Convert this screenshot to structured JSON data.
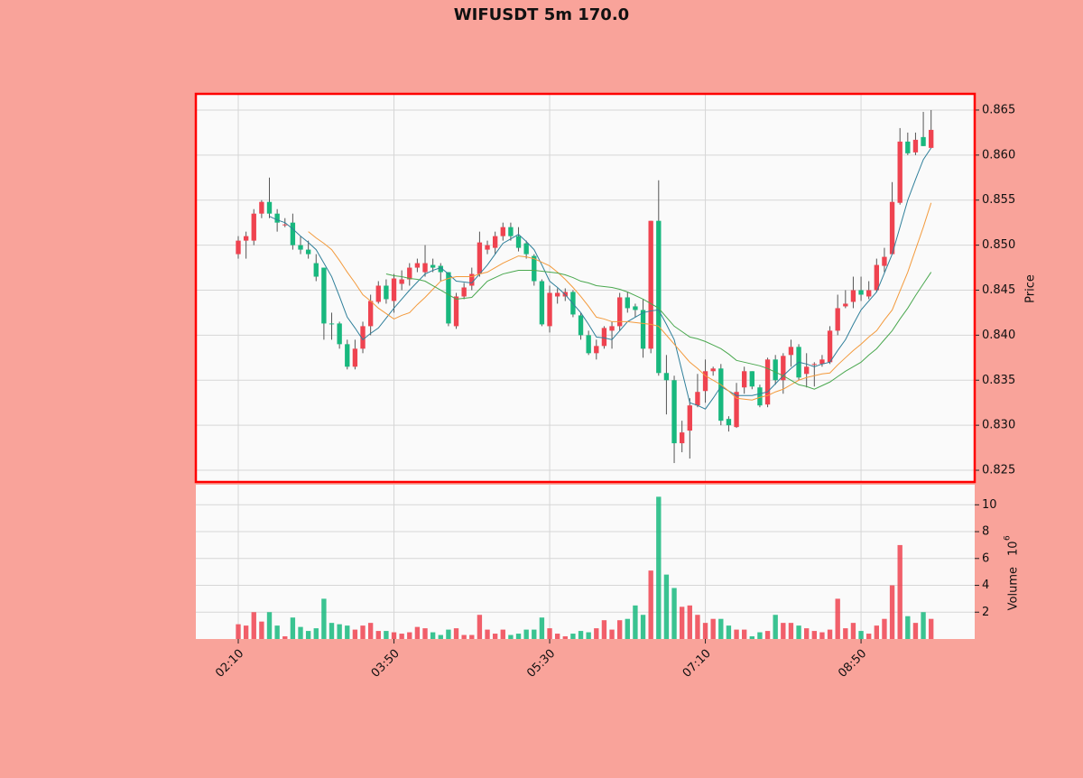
{
  "chart_data": {
    "type": "candlestick",
    "title": "WIFUSDT 5m 170.0",
    "categories": [
      "02:10",
      null,
      null,
      null,
      null,
      null,
      null,
      null,
      null,
      null,
      null,
      null,
      null,
      null,
      null,
      null,
      null,
      null,
      null,
      null,
      "03:50",
      null,
      null,
      null,
      null,
      null,
      null,
      null,
      null,
      null,
      null,
      null,
      null,
      null,
      null,
      null,
      null,
      null,
      null,
      null,
      "05:30",
      null,
      null,
      null,
      null,
      null,
      null,
      null,
      null,
      null,
      null,
      null,
      null,
      null,
      null,
      null,
      null,
      null,
      null,
      null,
      "07:10",
      null,
      null,
      null,
      null,
      null,
      null,
      null,
      null,
      null,
      null,
      null,
      null,
      null,
      null,
      null,
      null,
      null,
      null,
      null,
      "08:50",
      null,
      null,
      null,
      null,
      null,
      null,
      null,
      null,
      null
    ],
    "xlim": [
      -5.45,
      94.6
    ],
    "open": [
      0.849,
      0.8505,
      0.8505,
      0.8535,
      0.8548,
      0.8535,
      0.8523,
      0.8525,
      0.85,
      0.8495,
      0.848,
      0.8475,
      0.8413,
      0.8413,
      0.839,
      0.8365,
      0.8385,
      0.841,
      0.8437,
      0.8455,
      0.8438,
      0.8457,
      0.8462,
      0.8475,
      0.847,
      0.8478,
      0.8477,
      0.847,
      0.841,
      0.8443,
      0.8455,
      0.8468,
      0.8495,
      0.8497,
      0.851,
      0.852,
      0.851,
      0.8502,
      0.8488,
      0.846,
      0.841,
      0.8443,
      0.8443,
      0.8448,
      0.8422,
      0.84,
      0.838,
      0.8388,
      0.8405,
      0.841,
      0.8442,
      0.8432,
      0.8428,
      0.8385,
      0.8527,
      0.8358,
      0.835,
      0.828,
      0.8294,
      0.8322,
      0.8338,
      0.836,
      0.8363,
      0.8307,
      0.8298,
      0.8342,
      0.836,
      0.8342,
      0.8323,
      0.8373,
      0.835,
      0.8378,
      0.8387,
      0.8357,
      0.8367,
      0.8368,
      0.837,
      0.8405,
      0.8432,
      0.8437,
      0.845,
      0.8443,
      0.845,
      0.8477,
      0.849,
      0.8547,
      0.8615,
      0.8603,
      0.862,
      0.8608
    ],
    "high": [
      0.851,
      0.8515,
      0.854,
      0.855,
      0.8575,
      0.854,
      0.853,
      0.8535,
      0.851,
      0.8505,
      0.849,
      0.8475,
      0.8425,
      0.8415,
      0.8395,
      0.8395,
      0.8415,
      0.8445,
      0.846,
      0.8462,
      0.8468,
      0.8472,
      0.848,
      0.8485,
      0.85,
      0.8485,
      0.848,
      0.847,
      0.8447,
      0.8458,
      0.8475,
      0.8515,
      0.8505,
      0.8515,
      0.8525,
      0.8525,
      0.852,
      0.8505,
      0.849,
      0.8462,
      0.8455,
      0.8452,
      0.8452,
      0.845,
      0.8425,
      0.8405,
      0.8395,
      0.841,
      0.8415,
      0.8447,
      0.8448,
      0.8435,
      0.844,
      0.8527,
      0.8572,
      0.8378,
      0.8355,
      0.8305,
      0.833,
      0.8357,
      0.8373,
      0.8365,
      0.8368,
      0.831,
      0.8347,
      0.8365,
      0.836,
      0.8345,
      0.8375,
      0.8378,
      0.838,
      0.8395,
      0.839,
      0.838,
      0.837,
      0.8378,
      0.841,
      0.8445,
      0.845,
      0.8465,
      0.8465,
      0.846,
      0.8485,
      0.8497,
      0.857,
      0.863,
      0.8625,
      0.8625,
      0.8648,
      0.865
    ],
    "low": [
      0.8485,
      0.8485,
      0.85,
      0.853,
      0.853,
      0.8515,
      0.852,
      0.8495,
      0.849,
      0.8485,
      0.846,
      0.8395,
      0.8395,
      0.8385,
      0.8362,
      0.8362,
      0.838,
      0.84,
      0.8435,
      0.8435,
      0.8425,
      0.845,
      0.8455,
      0.847,
      0.8465,
      0.847,
      0.846,
      0.841,
      0.8407,
      0.844,
      0.845,
      0.8465,
      0.849,
      0.849,
      0.8505,
      0.8505,
      0.8493,
      0.8485,
      0.8455,
      0.841,
      0.8403,
      0.8435,
      0.8438,
      0.842,
      0.8395,
      0.8378,
      0.8373,
      0.8385,
      0.8385,
      0.8405,
      0.8425,
      0.842,
      0.8375,
      0.838,
      0.8355,
      0.8312,
      0.8258,
      0.827,
      0.8263,
      0.832,
      0.8325,
      0.8355,
      0.83,
      0.8293,
      0.8297,
      0.8335,
      0.834,
      0.832,
      0.832,
      0.8345,
      0.8335,
      0.8365,
      0.835,
      0.8342,
      0.8343,
      0.8365,
      0.8368,
      0.84,
      0.843,
      0.843,
      0.8438,
      0.844,
      0.8448,
      0.847,
      0.849,
      0.8545,
      0.86,
      0.86,
      0.861,
      0.8608
    ],
    "close": [
      0.8505,
      0.851,
      0.8535,
      0.8548,
      0.8535,
      0.8525,
      0.8523,
      0.85,
      0.8495,
      0.849,
      0.8465,
      0.8413,
      0.8412,
      0.839,
      0.8365,
      0.8385,
      0.841,
      0.8438,
      0.8455,
      0.844,
      0.8463,
      0.8462,
      0.8475,
      0.848,
      0.848,
      0.8475,
      0.847,
      0.8413,
      0.8443,
      0.8453,
      0.8468,
      0.8503,
      0.85,
      0.851,
      0.852,
      0.851,
      0.8497,
      0.849,
      0.846,
      0.8412,
      0.8447,
      0.8447,
      0.8448,
      0.8423,
      0.84,
      0.838,
      0.8388,
      0.8408,
      0.841,
      0.8442,
      0.843,
      0.8428,
      0.8385,
      0.8527,
      0.8358,
      0.835,
      0.828,
      0.8292,
      0.8322,
      0.8337,
      0.836,
      0.8363,
      0.8305,
      0.83,
      0.8337,
      0.836,
      0.8343,
      0.8322,
      0.8373,
      0.835,
      0.8377,
      0.8387,
      0.8353,
      0.8365,
      0.8368,
      0.8373,
      0.8405,
      0.843,
      0.8435,
      0.845,
      0.8445,
      0.845,
      0.8478,
      0.8487,
      0.8548,
      0.8615,
      0.8602,
      0.8617,
      0.861,
      0.8628
    ],
    "up_color": "#ef4350",
    "down_color": "#18b87e",
    "ylabel": "Price",
    "ylim": [
      0.8237,
      0.8668
    ],
    "yticks": [
      {
        "value": 0.825,
        "label": "0.825"
      },
      {
        "value": 0.83,
        "label": "0.830"
      },
      {
        "value": 0.835,
        "label": "0.835"
      },
      {
        "value": 0.84,
        "label": "0.840"
      },
      {
        "value": 0.845,
        "label": "0.845"
      },
      {
        "value": 0.85,
        "label": "0.850"
      },
      {
        "value": 0.855,
        "label": "0.855"
      },
      {
        "value": 0.86,
        "label": "0.860"
      },
      {
        "value": 0.865,
        "label": "0.865"
      }
    ],
    "grid": true,
    "moving_averages": [
      {
        "color": "#2f7f9a",
        "values": [
          null,
          null,
          null,
          null,
          0.8532,
          0.8528,
          0.8525,
          0.8518,
          0.851,
          0.8503,
          0.8495,
          0.848,
          0.8465,
          0.8443,
          0.842,
          0.8408,
          0.8395,
          0.8402,
          0.8408,
          0.8419,
          0.843,
          0.844,
          0.845,
          0.8459,
          0.8468,
          0.8472,
          0.8475,
          0.8468,
          0.846,
          0.8459,
          0.8458,
          0.8468,
          0.8478,
          0.849,
          0.8502,
          0.8507,
          0.8512,
          0.8504,
          0.8495,
          0.8478,
          0.846,
          0.8453,
          0.8445,
          0.8435,
          0.8425,
          0.8412,
          0.8398,
          0.8397,
          0.8395,
          0.8405,
          0.8415,
          0.842,
          0.8425,
          0.8427,
          0.8428,
          0.8412,
          0.8395,
          0.836,
          0.8325,
          0.8322,
          0.8318,
          0.833,
          0.8343,
          0.8338,
          0.8333,
          0.8333,
          0.8333,
          0.8335,
          0.8337,
          0.8346,
          0.8355,
          0.8363,
          0.837,
          0.8368,
          0.8365,
          0.8368,
          0.837,
          0.8383,
          0.8395,
          0.8412,
          0.8428,
          0.8438,
          0.8448,
          0.8469,
          0.849,
          0.852,
          0.855,
          0.8573,
          0.8595,
          0.8608
        ]
      },
      {
        "color": "#f39a3c",
        "values": [
          null,
          null,
          null,
          null,
          null,
          null,
          null,
          null,
          null,
          0.8515,
          0.8508,
          0.8502,
          0.8495,
          0.8483,
          0.847,
          0.8458,
          0.8445,
          0.8438,
          0.843,
          0.8424,
          0.8418,
          0.8422,
          0.8425,
          0.8434,
          0.8442,
          0.8451,
          0.846,
          0.8463,
          0.8465,
          0.8465,
          0.8465,
          0.8468,
          0.847,
          0.8475,
          0.848,
          0.8484,
          0.8488,
          0.8487,
          0.8485,
          0.8481,
          0.8477,
          0.847,
          0.8462,
          0.8453,
          0.8443,
          0.8432,
          0.842,
          0.8418,
          0.8415,
          0.8415,
          0.8415,
          0.8414,
          0.8413,
          0.8412,
          0.841,
          0.84,
          0.839,
          0.838,
          0.837,
          0.8363,
          0.8355,
          0.835,
          0.8345,
          0.8338,
          0.833,
          0.8329,
          0.8328,
          0.8331,
          0.8333,
          0.8337,
          0.834,
          0.8345,
          0.835,
          0.8353,
          0.8355,
          0.8357,
          0.8358,
          0.8367,
          0.8375,
          0.8383,
          0.839,
          0.8398,
          0.8405,
          0.8417,
          0.8428,
          0.8449,
          0.847,
          0.8495,
          0.852,
          0.8547
        ]
      },
      {
        "color": "#4aa84f",
        "values": [
          null,
          null,
          null,
          null,
          null,
          null,
          null,
          null,
          null,
          null,
          null,
          null,
          null,
          null,
          null,
          null,
          null,
          null,
          null,
          0.8468,
          0.8466,
          0.8465,
          0.8463,
          0.8462,
          0.846,
          0.8455,
          0.845,
          0.8445,
          0.844,
          0.8441,
          0.8442,
          0.8451,
          0.846,
          0.8464,
          0.8468,
          0.847,
          0.8472,
          0.8472,
          0.8472,
          0.8471,
          0.847,
          0.8469,
          0.8467,
          0.8464,
          0.846,
          0.8458,
          0.8455,
          0.8454,
          0.8453,
          0.8451,
          0.8448,
          0.8444,
          0.844,
          0.8435,
          0.843,
          0.842,
          0.841,
          0.8404,
          0.8398,
          0.8396,
          0.8393,
          0.8389,
          0.8385,
          0.8379,
          0.8372,
          0.837,
          0.8368,
          0.8366,
          0.8363,
          0.8359,
          0.8355,
          0.835,
          0.8345,
          0.8343,
          0.834,
          0.8344,
          0.8348,
          0.8354,
          0.836,
          0.8365,
          0.837,
          0.8378,
          0.8385,
          0.8395,
          0.8405,
          0.8418,
          0.843,
          0.8444,
          0.8457,
          0.847
        ]
      }
    ],
    "volume": {
      "ylabel": "Volume",
      "offset_base": "10",
      "offset_exponent": 6,
      "ylim": [
        0,
        11.5
      ],
      "yticks": [
        2,
        4,
        6,
        8,
        10
      ],
      "values": [
        1.1,
        1.0,
        2.0,
        1.3,
        2.0,
        1.0,
        0.2,
        1.6,
        0.9,
        0.6,
        0.8,
        3.0,
        1.2,
        1.1,
        1.0,
        0.7,
        1.0,
        1.2,
        0.6,
        0.6,
        0.5,
        0.4,
        0.5,
        0.9,
        0.8,
        0.5,
        0.3,
        0.7,
        0.8,
        0.3,
        0.3,
        1.8,
        0.7,
        0.4,
        0.7,
        0.3,
        0.4,
        0.7,
        0.7,
        1.6,
        0.8,
        0.4,
        0.2,
        0.4,
        0.6,
        0.5,
        0.8,
        1.4,
        0.7,
        1.4,
        1.5,
        2.5,
        1.8,
        5.1,
        10.6,
        4.8,
        3.8,
        2.4,
        2.5,
        1.8,
        1.2,
        1.5,
        1.5,
        1.0,
        0.7,
        0.7,
        0.2,
        0.5,
        0.6,
        1.8,
        1.2,
        1.2,
        1.0,
        0.8,
        0.6,
        0.5,
        0.7,
        3.0,
        0.8,
        1.2,
        0.6,
        0.4,
        1.0,
        1.5,
        4.0,
        7.0,
        1.7,
        1.2,
        2.0,
        1.5
      ]
    }
  }
}
